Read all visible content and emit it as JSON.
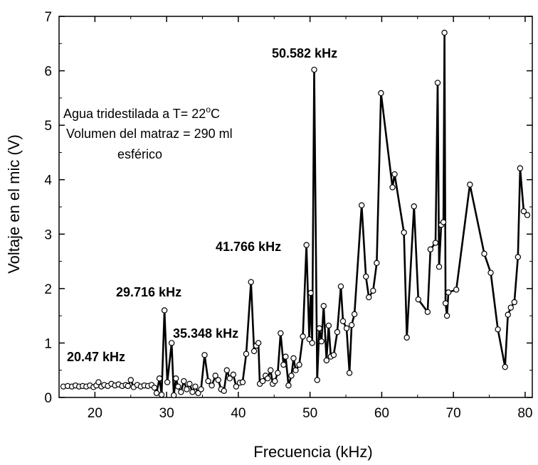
{
  "chart_data": {
    "type": "line",
    "title": "",
    "xlabel": "Frecuencia (kHz)",
    "ylabel": "Voltaje en el mic (V)",
    "xlim": [
      15,
      81
    ],
    "ylim": [
      0,
      7
    ],
    "x_ticks": [
      20,
      30,
      40,
      50,
      60,
      70,
      80
    ],
    "y_ticks": [
      0,
      1,
      2,
      3,
      4,
      5,
      6,
      7
    ],
    "grid": false,
    "legend": "none",
    "colors": {
      "line": "#000000",
      "marker_fill": "#ffffff",
      "marker_stroke": "#000000"
    },
    "annotations": {
      "peak_20": "20.47 kHz",
      "peak_29": "29.716 kHz",
      "peak_35": "35.348 kHz",
      "peak_41": "41.766 kHz",
      "peak_50": "50.582 kHz"
    },
    "note": {
      "line1_prefix": "Agua tridestilada  a T= 22",
      "line1_sup": "o",
      "line1_suffix": "C",
      "line2": "Volumen del matraz = 290 ml",
      "line3": "esférico"
    },
    "series": [
      {
        "points": [
          [
            15.6,
            0.2
          ],
          [
            16.2,
            0.21
          ],
          [
            16.8,
            0.2
          ],
          [
            17.3,
            0.22
          ],
          [
            17.8,
            0.2
          ],
          [
            18.3,
            0.21
          ],
          [
            18.8,
            0.2
          ],
          [
            19.3,
            0.22
          ],
          [
            19.8,
            0.19
          ],
          [
            20.2,
            0.22
          ],
          [
            20.5,
            0.28
          ],
          [
            20.9,
            0.2
          ],
          [
            21.3,
            0.23
          ],
          [
            21.8,
            0.21
          ],
          [
            22.3,
            0.25
          ],
          [
            22.8,
            0.22
          ],
          [
            23.3,
            0.24
          ],
          [
            23.8,
            0.21
          ],
          [
            24.3,
            0.23
          ],
          [
            24.6,
            0.21
          ],
          [
            25.0,
            0.32
          ],
          [
            25.4,
            0.19
          ],
          [
            25.9,
            0.23
          ],
          [
            26.4,
            0.2
          ],
          [
            26.9,
            0.22
          ],
          [
            27.4,
            0.21
          ],
          [
            27.9,
            0.23
          ],
          [
            28.3,
            0.18
          ],
          [
            28.6,
            0.08
          ],
          [
            29.0,
            0.35
          ],
          [
            29.3,
            0.05
          ],
          [
            29.7,
            1.6
          ],
          [
            30.1,
            0.28
          ],
          [
            30.7,
            1.0
          ],
          [
            31.0,
            0.04
          ],
          [
            31.3,
            0.35
          ],
          [
            31.6,
            0.2
          ],
          [
            32.0,
            0.1
          ],
          [
            32.4,
            0.3
          ],
          [
            32.8,
            0.15
          ],
          [
            33.2,
            0.25
          ],
          [
            33.6,
            0.1
          ],
          [
            34.0,
            0.2
          ],
          [
            34.4,
            0.08
          ],
          [
            34.8,
            0.15
          ],
          [
            35.3,
            0.78
          ],
          [
            35.8,
            0.3
          ],
          [
            36.3,
            0.22
          ],
          [
            36.8,
            0.4
          ],
          [
            37.2,
            0.32
          ],
          [
            37.6,
            0.15
          ],
          [
            38.0,
            0.12
          ],
          [
            38.4,
            0.5
          ],
          [
            38.8,
            0.35
          ],
          [
            39.3,
            0.42
          ],
          [
            39.7,
            0.2
          ],
          [
            40.2,
            0.27
          ],
          [
            40.6,
            0.28
          ],
          [
            41.1,
            0.8
          ],
          [
            41.77,
            2.12
          ],
          [
            42.2,
            0.85
          ],
          [
            42.5,
            0.95
          ],
          [
            42.8,
            1.0
          ],
          [
            43.0,
            0.25
          ],
          [
            43.4,
            0.3
          ],
          [
            43.8,
            0.4
          ],
          [
            44.1,
            0.35
          ],
          [
            44.5,
            0.5
          ],
          [
            44.8,
            0.25
          ],
          [
            45.1,
            0.3
          ],
          [
            45.5,
            0.45
          ],
          [
            45.9,
            1.18
          ],
          [
            46.3,
            0.6
          ],
          [
            46.6,
            0.75
          ],
          [
            47.0,
            0.22
          ],
          [
            47.4,
            0.4
          ],
          [
            47.7,
            0.72
          ],
          [
            48.0,
            0.5
          ],
          [
            48.5,
            0.6
          ],
          [
            49.0,
            1.12
          ],
          [
            49.5,
            2.8
          ],
          [
            49.9,
            1.07
          ],
          [
            50.1,
            1.92
          ],
          [
            50.3,
            1.0
          ],
          [
            50.58,
            6.02
          ],
          [
            51.0,
            0.32
          ],
          [
            51.3,
            1.27
          ],
          [
            51.6,
            1.03
          ],
          [
            51.9,
            1.68
          ],
          [
            52.3,
            0.68
          ],
          [
            52.6,
            1.32
          ],
          [
            52.9,
            0.75
          ],
          [
            53.3,
            0.78
          ],
          [
            53.8,
            1.2
          ],
          [
            54.3,
            2.04
          ],
          [
            54.6,
            1.4
          ],
          [
            55.1,
            1.27
          ],
          [
            55.5,
            0.45
          ],
          [
            55.8,
            1.33
          ],
          [
            56.2,
            1.53
          ],
          [
            57.2,
            3.53
          ],
          [
            57.8,
            2.22
          ],
          [
            58.2,
            1.84
          ],
          [
            58.8,
            1.96
          ],
          [
            59.3,
            2.47
          ],
          [
            59.9,
            5.59
          ],
          [
            61.5,
            3.86
          ],
          [
            61.8,
            4.1
          ],
          [
            63.1,
            3.03
          ],
          [
            63.5,
            1.1
          ],
          [
            64.5,
            3.51
          ],
          [
            65.1,
            1.8
          ],
          [
            66.4,
            1.57
          ],
          [
            66.8,
            2.72
          ],
          [
            67.5,
            2.84
          ],
          [
            67.8,
            5.78
          ],
          [
            68.0,
            2.4
          ],
          [
            68.3,
            3.17
          ],
          [
            68.6,
            3.22
          ],
          [
            68.75,
            6.7
          ],
          [
            68.9,
            1.73
          ],
          [
            69.1,
            1.5
          ],
          [
            69.3,
            1.93
          ],
          [
            70.4,
            1.98
          ],
          [
            72.3,
            3.91
          ],
          [
            74.3,
            2.64
          ],
          [
            75.2,
            2.29
          ],
          [
            76.2,
            1.25
          ],
          [
            77.2,
            0.56
          ],
          [
            77.6,
            1.52
          ],
          [
            78.0,
            1.65
          ],
          [
            78.5,
            1.75
          ],
          [
            79.0,
            2.58
          ],
          [
            79.3,
            4.21
          ],
          [
            79.8,
            3.42
          ],
          [
            80.3,
            3.35
          ]
        ]
      }
    ]
  }
}
